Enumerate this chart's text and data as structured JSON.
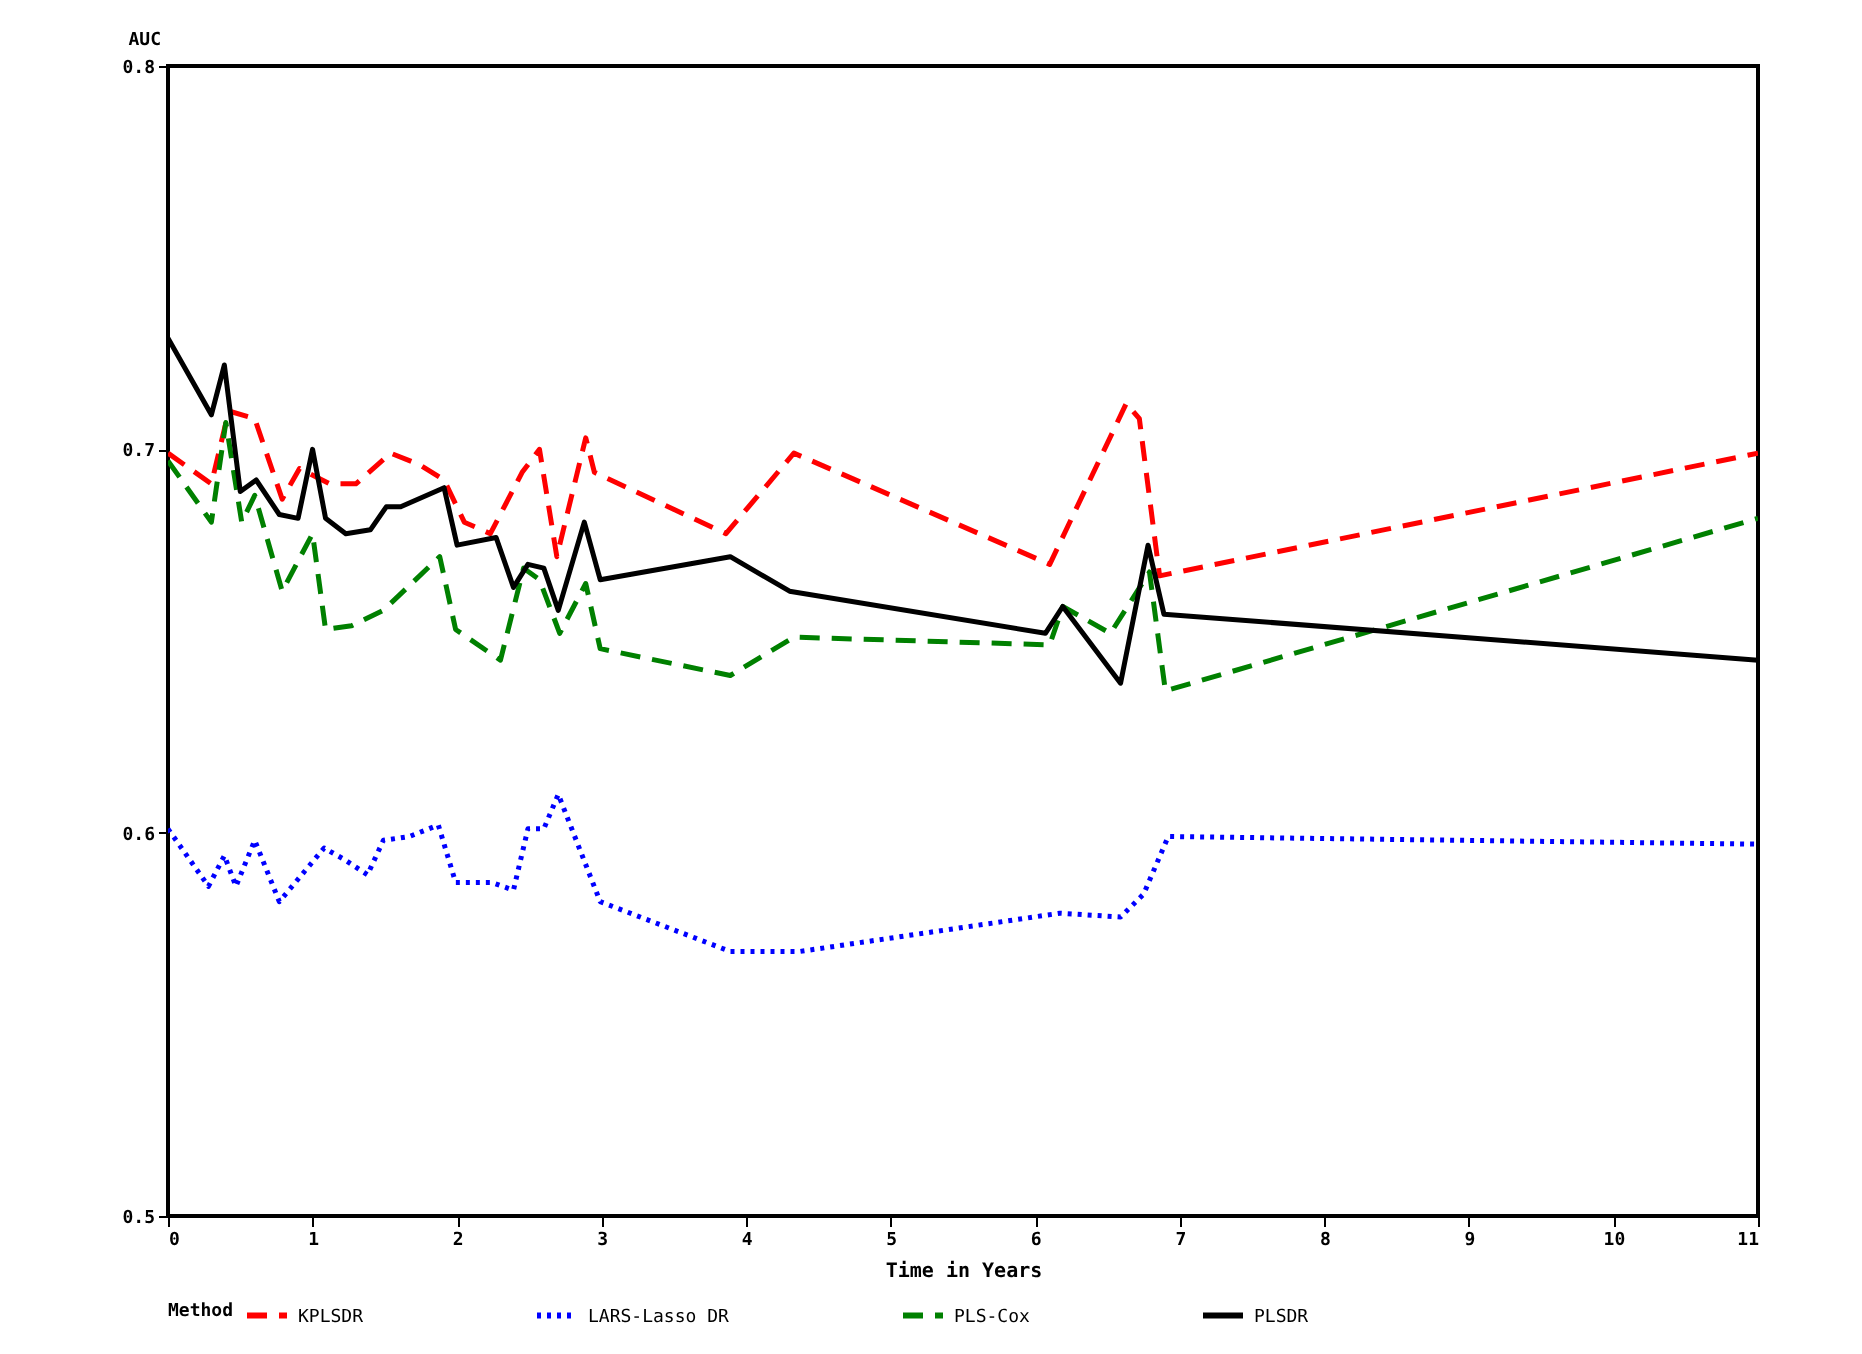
{
  "chart_data": {
    "type": "line",
    "xlabel": "Time in Years",
    "ylabel": "AUC",
    "legend_title": "Method",
    "legend": "bottom",
    "grid": false,
    "xlim": [
      0,
      11
    ],
    "xticks": [
      0,
      1,
      2,
      3,
      4,
      5,
      6,
      7,
      8,
      9,
      10,
      11
    ],
    "ylim": [
      0.5,
      0.8
    ],
    "yticks": [
      0.5,
      0.6,
      0.7,
      0.8
    ],
    "series": [
      {
        "name": "KPLSDR",
        "color": "#ff0000",
        "line_style": "dashed",
        "x": [
          0,
          0.3,
          0.42,
          0.6,
          0.79,
          0.91,
          1.12,
          1.3,
          1.54,
          1.74,
          1.91,
          2.05,
          2.23,
          2.45,
          2.57,
          2.69,
          2.89,
          2.95,
          3.86,
          4.33,
          6.1,
          6.63,
          6.72,
          6.86,
          11
        ],
        "values": [
          0.699,
          0.691,
          0.71,
          0.708,
          0.687,
          0.695,
          0.691,
          0.691,
          0.699,
          0.696,
          0.692,
          0.681,
          0.678,
          0.694,
          0.7,
          0.672,
          0.703,
          0.694,
          0.678,
          0.699,
          0.67,
          0.712,
          0.708,
          0.667,
          0.699
        ]
      },
      {
        "name": "LARS-Lasso DR",
        "color": "#0000ff",
        "line_style": "dotted",
        "x": [
          0,
          0.28,
          0.39,
          0.47,
          0.6,
          0.77,
          1.08,
          1.22,
          1.38,
          1.49,
          1.67,
          1.87,
          1.99,
          2.24,
          2.39,
          2.49,
          2.6,
          2.7,
          2.99,
          3.89,
          4.37,
          6.17,
          6.59,
          6.75,
          6.92,
          11
        ],
        "values": [
          0.601,
          0.586,
          0.594,
          0.586,
          0.598,
          0.582,
          0.596,
          0.593,
          0.589,
          0.598,
          0.599,
          0.602,
          0.587,
          0.587,
          0.585,
          0.601,
          0.601,
          0.61,
          0.582,
          0.569,
          0.569,
          0.579,
          0.578,
          0.584,
          0.599,
          0.597
        ]
      },
      {
        "name": "PLS-Cox",
        "color": "#008000",
        "line_style": "dashed",
        "x": [
          0,
          0.3,
          0.4,
          0.51,
          0.6,
          0.79,
          1,
          1.09,
          1.27,
          1.49,
          1.88,
          1.99,
          2.3,
          2.46,
          2.57,
          2.71,
          2.89,
          2.99,
          3.89,
          4.33,
          6.1,
          6.19,
          6.52,
          6.79,
          6.9,
          11
        ],
        "values": [
          0.697,
          0.681,
          0.707,
          0.681,
          0.688,
          0.663,
          0.678,
          0.653,
          0.654,
          0.658,
          0.672,
          0.653,
          0.645,
          0.669,
          0.666,
          0.652,
          0.665,
          0.648,
          0.641,
          0.651,
          0.649,
          0.659,
          0.652,
          0.668,
          0.637,
          0.682
        ]
      },
      {
        "name": "PLSDR",
        "color": "#000000",
        "line_style": "solid",
        "x": [
          0,
          0.3,
          0.39,
          0.5,
          0.61,
          0.77,
          0.9,
          1,
          1.09,
          1.23,
          1.4,
          1.51,
          1.61,
          1.91,
          2,
          2.27,
          2.39,
          2.49,
          2.6,
          2.7,
          2.88,
          2.99,
          3.89,
          4.3,
          6.07,
          6.19,
          6.59,
          6.78,
          6.89,
          11
        ],
        "values": [
          0.729,
          0.709,
          0.722,
          0.689,
          0.692,
          0.683,
          0.682,
          0.7,
          0.682,
          0.678,
          0.679,
          0.685,
          0.685,
          0.69,
          0.675,
          0.677,
          0.664,
          0.67,
          0.669,
          0.658,
          0.681,
          0.666,
          0.672,
          0.663,
          0.652,
          0.659,
          0.639,
          0.675,
          0.657,
          0.645
        ]
      }
    ]
  }
}
